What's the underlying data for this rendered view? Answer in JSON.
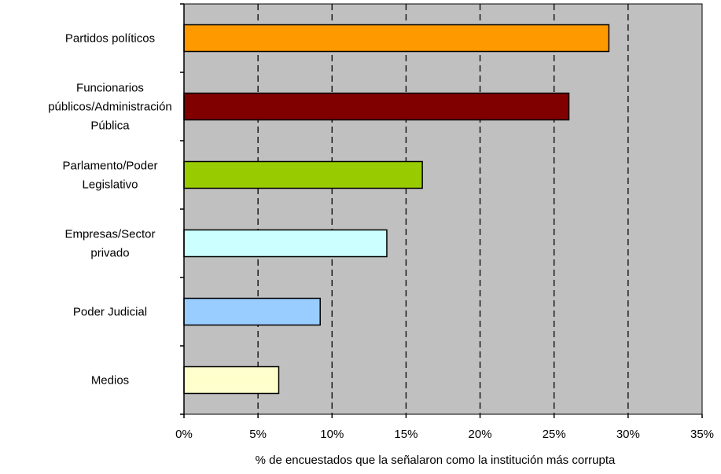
{
  "chart_data": {
    "type": "bar",
    "orientation": "horizontal",
    "categories": [
      [
        "Partidos políticos"
      ],
      [
        "Funcionarios",
        "públicos/Administración",
        "Pública"
      ],
      [
        "Parlamento/Poder",
        "Legislativo"
      ],
      [
        "Empresas/Sector",
        "privado"
      ],
      [
        "Poder Judicial"
      ],
      [
        "Medios"
      ]
    ],
    "values": [
      28.7,
      26.0,
      16.1,
      13.7,
      9.2,
      6.4
    ],
    "bar_colors": [
      "#ff9900",
      "#800000",
      "#99cc00",
      "#ccffff",
      "#99ccff",
      "#ffffcc"
    ],
    "xlim": [
      0,
      35
    ],
    "xticks": [
      0,
      5,
      10,
      15,
      20,
      25,
      30,
      35
    ],
    "tick_labels": [
      "0%",
      "5%",
      "10%",
      "15%",
      "20%",
      "25%",
      "30%",
      "35%"
    ],
    "xlabel": "% de encuestados que la señalaron como la institución más corrupta",
    "ylabel": "",
    "title": "",
    "grid": "vertical dashed",
    "plot_background": "#c0c0c0",
    "legend": "none"
  }
}
